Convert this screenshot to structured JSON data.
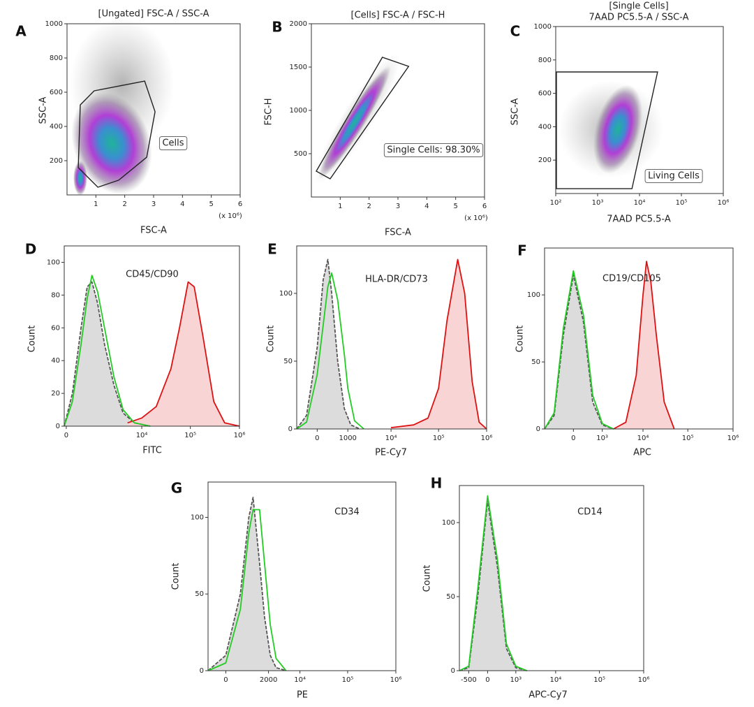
{
  "chart_data": [
    {
      "type": "scatter",
      "label": "A",
      "title": "[Ungated] FSC-A / SSC-A",
      "xlabel": "FSC-A",
      "ylabel": "SSC-A",
      "x_unit_label": "(x 10⁶)",
      "xlim": [
        0,
        6
      ],
      "xticks": [
        1,
        2,
        3,
        4,
        5,
        6
      ],
      "ylim": [
        0,
        1000
      ],
      "yticks": [
        200,
        400,
        600,
        800,
        1000
      ],
      "gate": {
        "label": "Cells",
        "x": [
          0.94,
          2.69,
          3.05,
          2.76,
          1.79,
          1.07,
          0.39,
          0.46
        ],
        "y": [
          608,
          665,
          486,
          220,
          86,
          45,
          159,
          526
        ]
      }
    },
    {
      "type": "scatter",
      "label": "B",
      "title": "[Cells] FSC-A / FSC-H",
      "xlabel": "FSC-A",
      "ylabel": "FSC-H",
      "x_unit_label": "(x 10⁶)",
      "xlim": [
        0,
        6
      ],
      "xticks": [
        1,
        2,
        3,
        4,
        5,
        6
      ],
      "ylim": [
        0,
        2000
      ],
      "yticks": [
        500,
        1000,
        1500,
        2000
      ],
      "gate": {
        "label": "Single Cells: 98.30%",
        "x": [
          0.17,
          2.46,
          3.37,
          0.65
        ],
        "y": [
          298,
          1613,
          1508,
          210
        ]
      }
    },
    {
      "type": "scatter",
      "label": "C",
      "title": [
        "[Single Cells]",
        "7AAD PC5.5-A / SSC-A"
      ],
      "xlabel": "7AAD PC5.5-A",
      "ylabel": "SSC-A",
      "xscale": "log",
      "xlim": [
        100,
        1000000
      ],
      "xticks": [
        {
          "value": 100,
          "label": "10²"
        },
        {
          "value": 1000,
          "label": "10³"
        },
        {
          "value": 10000,
          "label": "10⁴"
        },
        {
          "value": 100000,
          "label": "10⁵"
        },
        {
          "value": 1000000,
          "label": "10⁶"
        }
      ],
      "ylim": [
        0,
        1000
      ],
      "yticks": [
        200,
        400,
        600,
        800,
        1000
      ],
      "gate": {
        "label": "Living Cells",
        "x": [
          104,
          27000,
          6600,
          104
        ],
        "y": [
          728,
          728,
          29,
          29
        ]
      }
    },
    {
      "type": "line",
      "label": "D",
      "marker_label": "CD45/CD90",
      "xlabel": "FITC",
      "ylabel": "Count",
      "xscale": "biexponential",
      "xlim": [
        -30,
        1000000
      ],
      "xticks": [
        0,
        {
          "value": 10000,
          "label": "10⁴"
        },
        {
          "value": 100000,
          "label": "10⁵"
        },
        {
          "value": 1000000,
          "label": "10⁶"
        }
      ],
      "ylim": [
        0,
        110
      ],
      "yticks": [
        0,
        20,
        40,
        60,
        80,
        100
      ],
      "series": [
        {
          "color": "#555555",
          "fill": "#dcdcdc",
          "dash": true,
          "x": [
            -30,
            100,
            300,
            500,
            700,
            1000,
            1500,
            2500,
            4000,
            7000,
            15000
          ],
          "values": [
            0,
            20,
            60,
            85,
            88,
            75,
            50,
            25,
            8,
            2,
            0
          ]
        },
        {
          "color": "#dd1111",
          "fill": "#f9d4d4",
          "x": [
            5000,
            10000,
            20000,
            40000,
            60000,
            90000,
            120000,
            180000,
            300000,
            500000,
            1000000
          ],
          "values": [
            2,
            5,
            12,
            35,
            60,
            88,
            85,
            55,
            15,
            2,
            0
          ]
        },
        {
          "color": "#22cc22",
          "x": [
            -30,
            100,
            300,
            500,
            700,
            1000,
            1500,
            2500,
            4000,
            7000,
            15000
          ],
          "values": [
            0,
            15,
            50,
            78,
            92,
            82,
            60,
            30,
            10,
            2,
            0
          ]
        }
      ]
    },
    {
      "type": "line",
      "label": "E",
      "marker_label": "HLA-DR/CD73",
      "xlabel": "PE-Cy7",
      "ylabel": "Count",
      "xscale": "biexponential",
      "xlim": [
        -500,
        1000000
      ],
      "xticks": [
        0,
        1000,
        {
          "value": 10000,
          "label": "10⁴"
        },
        {
          "value": 100000,
          "label": "10⁵"
        },
        {
          "value": 1000000,
          "label": "10⁶"
        }
      ],
      "ylim": [
        0,
        135
      ],
      "yticks": [
        0,
        50,
        100
      ],
      "series": [
        {
          "color": "#555555",
          "fill": "#dcdcdc",
          "dash": true,
          "x": [
            -500,
            -200,
            0,
            100,
            200,
            300,
            500,
            800,
            1200,
            2000
          ],
          "values": [
            0,
            10,
            60,
            110,
            125,
            100,
            50,
            15,
            3,
            0
          ]
        },
        {
          "color": "#dd1111",
          "fill": "#f9d4d4",
          "x": [
            10000,
            30000,
            60000,
            100000,
            150000,
            250000,
            350000,
            500000,
            700000,
            1000000
          ],
          "values": [
            1,
            3,
            8,
            30,
            80,
            125,
            100,
            35,
            5,
            0
          ]
        },
        {
          "color": "#22cc22",
          "x": [
            -500,
            -200,
            0,
            200,
            300,
            500,
            800,
            1000,
            1500,
            2500
          ],
          "values": [
            0,
            5,
            40,
            105,
            115,
            95,
            55,
            30,
            6,
            0
          ]
        }
      ]
    },
    {
      "type": "line",
      "label": "F",
      "marker_label": "CD19/CD105",
      "xlabel": "APC",
      "ylabel": "Count",
      "xscale": "biexponential",
      "xlim": [
        -1000,
        1000000
      ],
      "xticks": [
        0,
        {
          "value": 1000,
          "label": "10³"
        },
        {
          "value": 10000,
          "label": "10⁴"
        },
        {
          "value": 100000,
          "label": "10⁵"
        },
        {
          "value": 1000000,
          "label": "10⁶"
        }
      ],
      "ylim": [
        0,
        135
      ],
      "yticks": [
        0,
        50,
        100
      ],
      "series": [
        {
          "color": "#555555",
          "fill": "#dcdcdc",
          "dash": true,
          "x": [
            -1000,
            -500,
            -200,
            0,
            200,
            500,
            1000,
            2000
          ],
          "values": [
            0,
            10,
            70,
            115,
            80,
            20,
            3,
            0
          ]
        },
        {
          "color": "#dd1111",
          "fill": "#f9d4d4",
          "x": [
            2000,
            4000,
            7000,
            10000,
            12000,
            15000,
            20000,
            30000,
            50000
          ],
          "values": [
            0,
            5,
            40,
            100,
            125,
            110,
            70,
            20,
            0
          ]
        },
        {
          "color": "#22cc22",
          "x": [
            -1000,
            -500,
            -200,
            0,
            200,
            500,
            1000,
            2000
          ],
          "values": [
            0,
            12,
            75,
            118,
            85,
            25,
            4,
            0
          ]
        }
      ]
    },
    {
      "type": "line",
      "label": "G",
      "marker_label": "CD34",
      "xlabel": "PE",
      "ylabel": "Count",
      "xscale": "biexponential",
      "xlim": [
        -400,
        1000000
      ],
      "xticks": [
        0,
        2000,
        {
          "value": 10000,
          "label": "10⁴"
        },
        {
          "value": 100000,
          "label": "10⁵"
        },
        {
          "value": 1000000,
          "label": "10⁶"
        }
      ],
      "ylim": [
        0,
        123
      ],
      "yticks": [
        0,
        50,
        100
      ],
      "series": [
        {
          "color": "#555555",
          "fill": "#dcdcdc",
          "dash": true,
          "x": [
            -400,
            0,
            300,
            600,
            800,
            1200,
            1600,
            2200,
            3000,
            5000
          ],
          "values": [
            0,
            10,
            50,
            100,
            113,
            70,
            35,
            10,
            2,
            0
          ]
        },
        {
          "color": "#22cc22",
          "x": [
            -400,
            0,
            300,
            600,
            800,
            1200,
            1600,
            2200,
            3000,
            5000
          ],
          "values": [
            0,
            5,
            40,
            90,
            105,
            105,
            70,
            30,
            8,
            0
          ]
        }
      ]
    },
    {
      "type": "line",
      "label": "H",
      "marker_label": "CD14",
      "xlabel": "APC-Cy7",
      "ylabel": "Count",
      "xscale": "biexponential",
      "xlim": [
        -1000,
        1000000
      ],
      "xticks": [
        -500,
        0,
        {
          "value": 1000,
          "label": "10³"
        },
        {
          "value": 10000,
          "label": "10⁴"
        },
        {
          "value": 100000,
          "label": "10⁵"
        },
        {
          "value": 1000000,
          "label": "10⁶"
        }
      ],
      "ylim": [
        0,
        125
      ],
      "yticks": [
        0,
        50,
        100
      ],
      "series": [
        {
          "color": "#555555",
          "fill": "#dcdcdc",
          "dash": true,
          "x": [
            -1000,
            -500,
            -200,
            0,
            200,
            500,
            1000,
            2000
          ],
          "values": [
            0,
            2,
            50,
            115,
            70,
            15,
            2,
            0
          ]
        },
        {
          "color": "#22cc22",
          "x": [
            -1000,
            -500,
            -200,
            0,
            200,
            500,
            1000,
            2000
          ],
          "values": [
            0,
            3,
            55,
            118,
            75,
            18,
            3,
            0
          ]
        }
      ]
    }
  ]
}
